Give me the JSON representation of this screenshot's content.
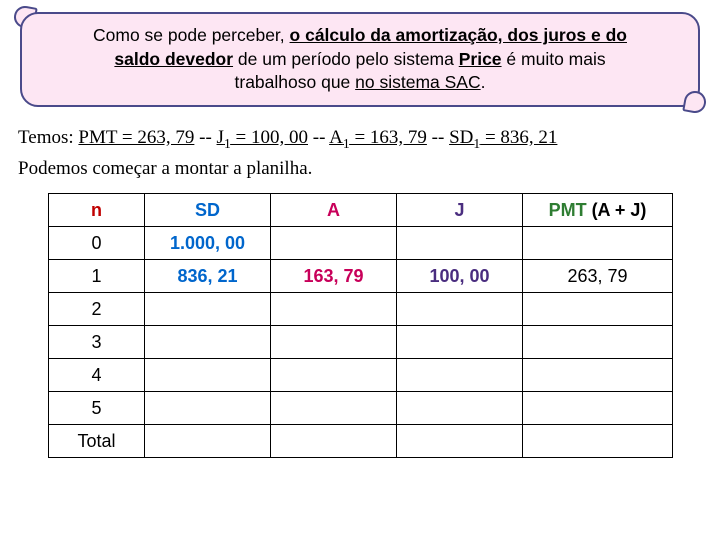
{
  "callout": {
    "line1_pre": "Como se pode perceber, ",
    "line1_u": "o cálculo da amortização, dos juros e do",
    "line2_u1": "saldo devedor",
    "line2_mid": " de um período pelo sistema ",
    "line2_u2": "Price",
    "line2_post": " é muito mais",
    "line3_pre": "trabalhoso que ",
    "line3_u": "no sistema SAC",
    "line3_post": "."
  },
  "paragraph": {
    "l1_pre": "Temos: ",
    "l1_u1": "PMT = 263, 79",
    "l1_sep1": "  --  ",
    "l1_u2a": "J",
    "l1_u2sub": "1",
    "l1_u2b": " = 100, 00",
    "l1_sep2": " -- ",
    "l1_u3a": "A",
    "l1_u3sub": "1",
    "l1_u3b": " = 163, 79",
    "l1_sep3": " -- ",
    "l1_u4a": "SD",
    "l1_u4sub": "1",
    "l1_u4b": " = 836, 21",
    "l2": "Podemos começar a montar a planilha."
  },
  "table": {
    "headers": {
      "n": "n",
      "sd": "SD",
      "a": "A",
      "j": "J",
      "pmt_bold": "PMT",
      "pmt_rest": " (A + J)"
    },
    "rows": [
      {
        "n": "0",
        "sd": "1.000, 00",
        "a": "",
        "j": "",
        "pmt": ""
      },
      {
        "n": "1",
        "sd": "836, 21",
        "a": "163, 79",
        "j": "100, 00",
        "pmt": "263, 79"
      },
      {
        "n": "2",
        "sd": "",
        "a": "",
        "j": "",
        "pmt": ""
      },
      {
        "n": "3",
        "sd": "",
        "a": "",
        "j": "",
        "pmt": ""
      },
      {
        "n": "4",
        "sd": "",
        "a": "",
        "j": "",
        "pmt": ""
      },
      {
        "n": "5",
        "sd": "",
        "a": "",
        "j": "",
        "pmt": ""
      },
      {
        "n": "Total",
        "sd": "",
        "a": "",
        "j": "",
        "pmt": ""
      }
    ],
    "col_widths": {
      "n": 96,
      "sd": 126,
      "a": 126,
      "j": 126,
      "pmt": 150
    },
    "colors": {
      "n": "#c00000",
      "sd": "#0066cc",
      "a": "#c8005a",
      "j": "#4a2d7f",
      "pmt": "#2e7d32",
      "border": "#000000",
      "callout_bg": "#fde6f3",
      "callout_border": "#4a4a8a"
    },
    "fontsize_header": 18,
    "fontsize_cell": 18
  }
}
